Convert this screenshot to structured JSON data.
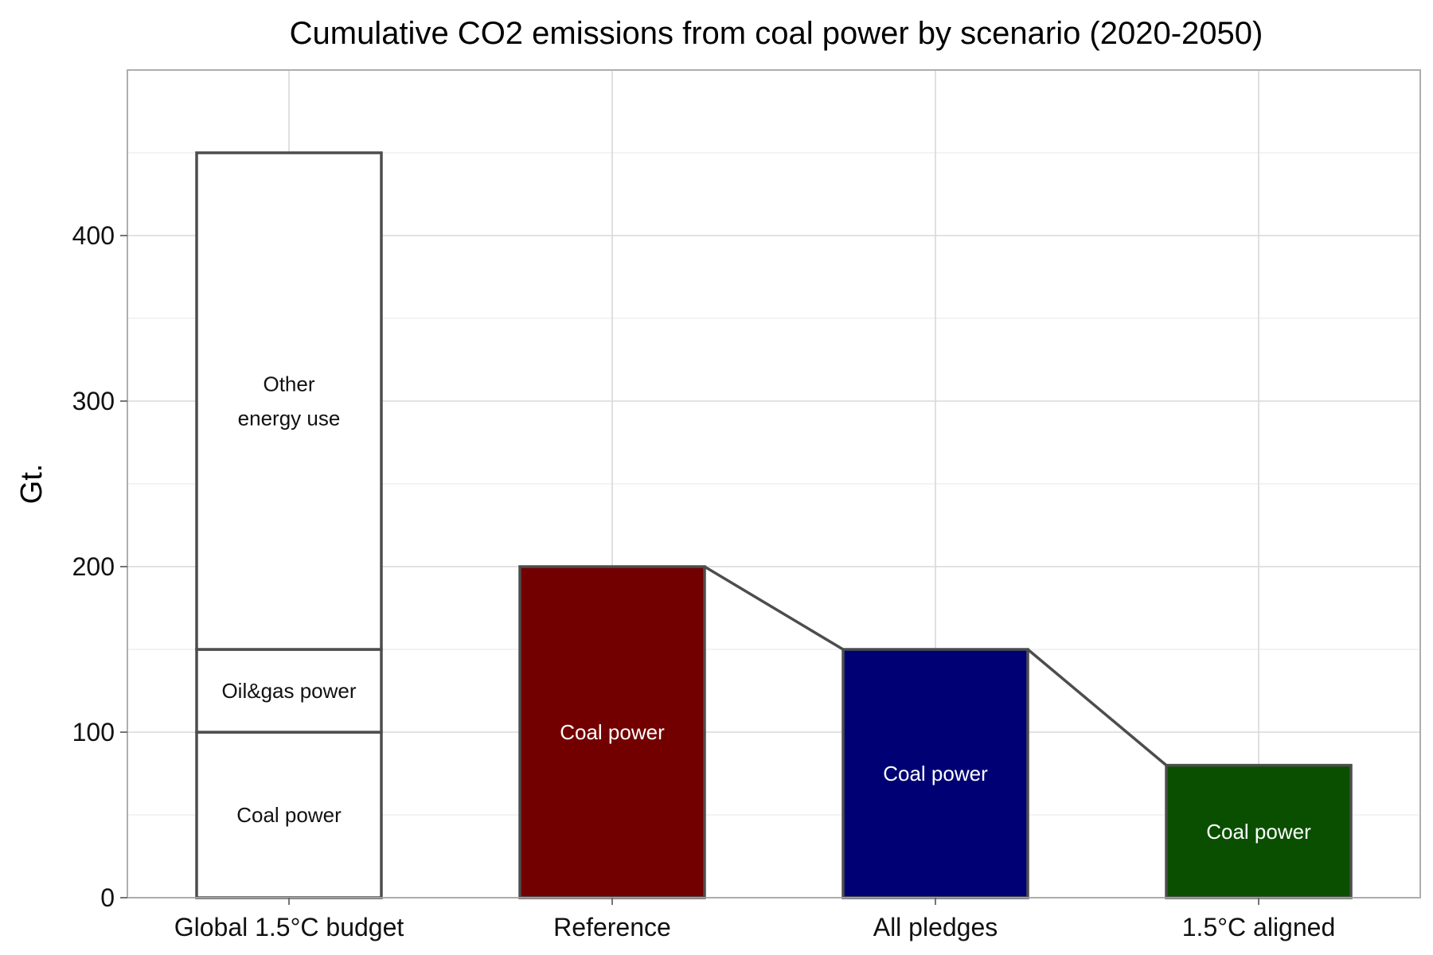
{
  "chart_data": {
    "type": "bar",
    "title": "Cumulative CO2 emissions from coal power by scenario (2020-2050)",
    "xlabel": "",
    "ylabel": "Gt.",
    "ylim": [
      0,
      500
    ],
    "yticks": [
      0,
      100,
      200,
      300,
      400
    ],
    "grid": true,
    "categories": [
      "Global 1.5°C budget",
      "Reference",
      "All pledges",
      "1.5°C aligned"
    ],
    "stacked_bar": {
      "category": "Global 1.5°C budget",
      "segments": [
        {
          "label": "Coal power",
          "value": 100,
          "color": "#ffffff"
        },
        {
          "label": "Oil&gas power",
          "value": 50,
          "color": "#ffffff"
        },
        {
          "label_lines": [
            "Other",
            "energy use"
          ],
          "value": 300,
          "color": "#ffffff"
        }
      ]
    },
    "scenarios": [
      {
        "category": "Reference",
        "label": "Coal power",
        "value": 200,
        "color": "#730000"
      },
      {
        "category": "All pledges",
        "label": "Coal power",
        "value": 150,
        "color": "#000075"
      },
      {
        "category": "1.5°C aligned",
        "label": "Coal power",
        "value": 80,
        "color": "#0a4f00"
      }
    ],
    "connector_color": "#4d4d4d"
  }
}
